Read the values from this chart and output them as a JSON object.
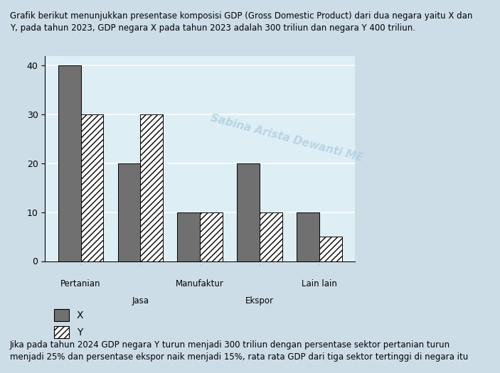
{
  "categories": [
    "Pertanian",
    "Jasa",
    "Manufaktur",
    "Ekspor",
    "Lain lain"
  ],
  "x_values": [
    40,
    20,
    10,
    20,
    10
  ],
  "y_values": [
    30,
    30,
    10,
    10,
    5
  ],
  "color_x": "#707070",
  "color_y_face": "#ffffff",
  "ylim": [
    0,
    42
  ],
  "yticks": [
    0,
    10,
    20,
    30,
    40
  ],
  "header_text": "Grafik berikut menunjukkan presentase komposisi GDP (Gross Domestic Product) dari dua negara yaitu X dan\nY, pada tahun 2023, GDP negara X pada tahun 2023 adalah 300 triliun dan negara Y 400 triliun.",
  "footer_text": "Jika pada tahun 2024 GDP negara Y turun menjadi 300 triliun dengan persentase sektor pertanian turun\nmenjadi 25% dan persentase ekspor naik menjadi 15%, rata rata GDP dari tiga sektor tertinggi di negara itu",
  "background_color": "#ccdde8",
  "plot_bg_color": "#ddeef5",
  "bar_width": 0.38,
  "legend_x": "X",
  "legend_y": "Y",
  "watermark": "Sabina Arista Dewanti ME",
  "xlabel_row1": [
    "Pertanian",
    "",
    "Manufaktur",
    "",
    "Lain lain"
  ],
  "xlabel_row2": [
    "",
    "Jasa",
    "",
    "Ekspor",
    ""
  ]
}
